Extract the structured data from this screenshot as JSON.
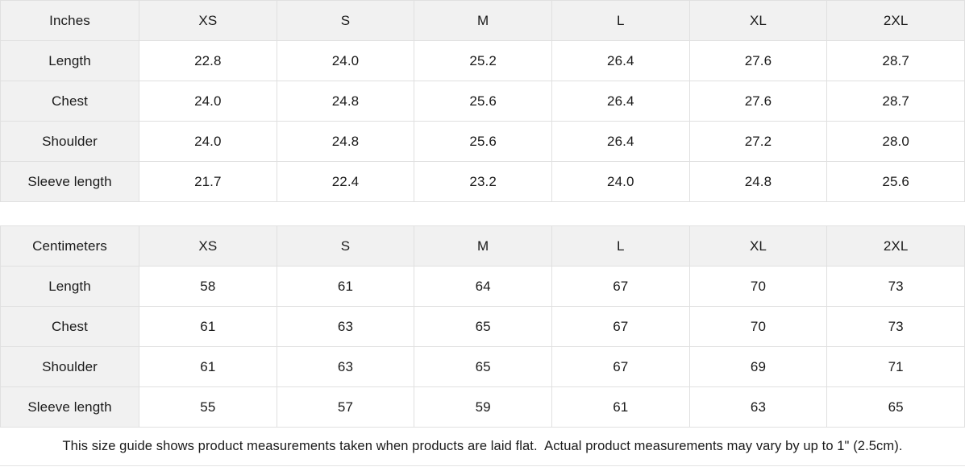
{
  "colors": {
    "header_cell_bg": "#f1f1f1",
    "border": "#e0e0e0",
    "text": "#1a1a1a",
    "background": "#ffffff"
  },
  "tables": [
    {
      "unit_label": "Inches",
      "sizes": [
        "XS",
        "S",
        "M",
        "L",
        "XL",
        "2XL"
      ],
      "rows": [
        {
          "label": "Length",
          "values": [
            "22.8",
            "24.0",
            "25.2",
            "26.4",
            "27.6",
            "28.7"
          ]
        },
        {
          "label": "Chest",
          "values": [
            "24.0",
            "24.8",
            "25.6",
            "26.4",
            "27.6",
            "28.7"
          ]
        },
        {
          "label": "Shoulder",
          "values": [
            "24.0",
            "24.8",
            "25.6",
            "26.4",
            "27.2",
            "28.0"
          ]
        },
        {
          "label": "Sleeve length",
          "values": [
            "21.7",
            "22.4",
            "23.2",
            "24.0",
            "24.8",
            "25.6"
          ]
        }
      ]
    },
    {
      "unit_label": "Centimeters",
      "sizes": [
        "XS",
        "S",
        "M",
        "L",
        "XL",
        "2XL"
      ],
      "rows": [
        {
          "label": "Length",
          "values": [
            "58",
            "61",
            "64",
            "67",
            "70",
            "73"
          ]
        },
        {
          "label": "Chest",
          "values": [
            "61",
            "63",
            "65",
            "67",
            "70",
            "73"
          ]
        },
        {
          "label": "Shoulder",
          "values": [
            "61",
            "63",
            "65",
            "67",
            "69",
            "71"
          ]
        },
        {
          "label": "Sleeve length",
          "values": [
            "55",
            "57",
            "59",
            "61",
            "63",
            "65"
          ]
        }
      ]
    }
  ],
  "footer": {
    "note": "This size guide shows product measurements taken when products are laid flat.  Actual product measurements may vary by up to 1\" (2.5cm)."
  }
}
